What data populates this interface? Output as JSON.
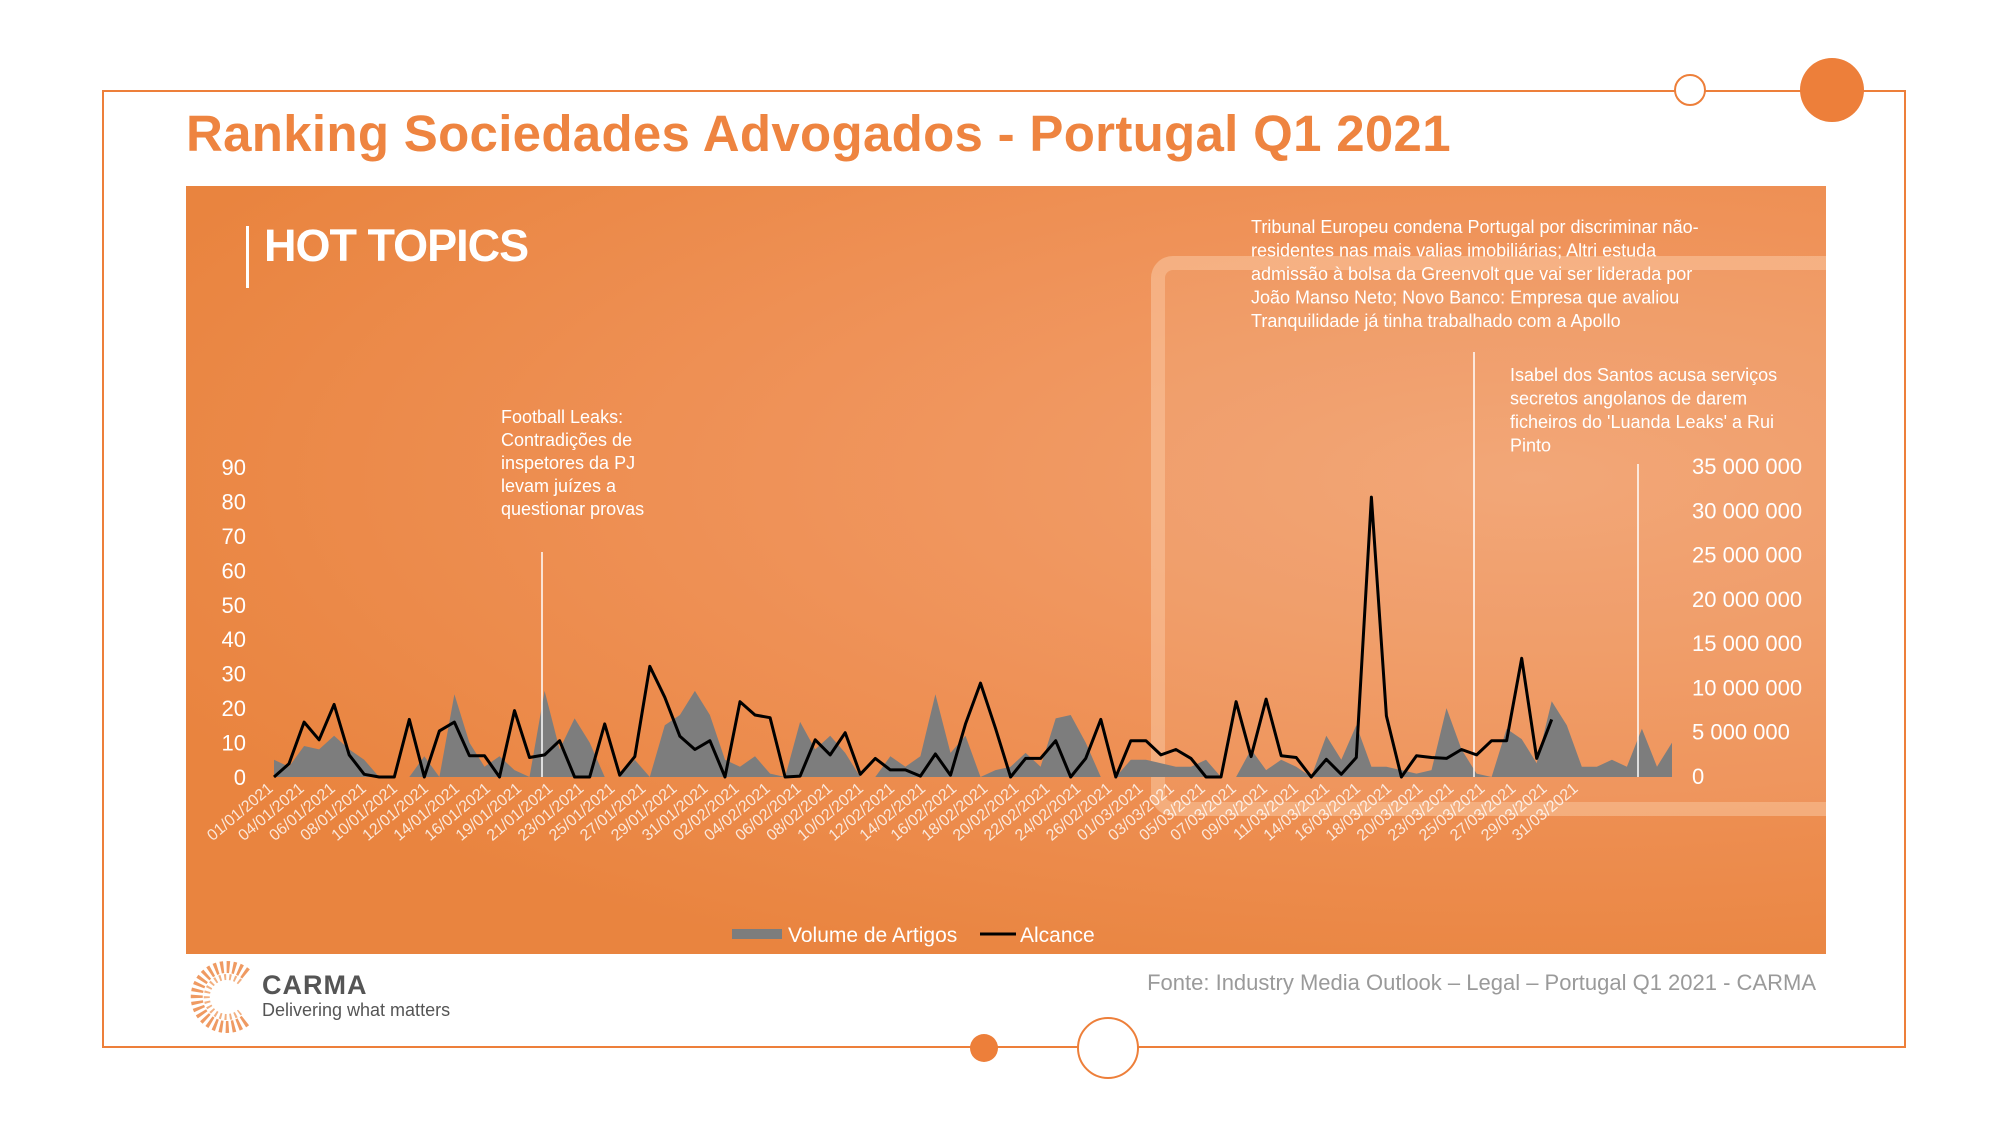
{
  "page": {
    "title": "Ranking Sociedades Advogados - Portugal Q1 2021",
    "section_title": "HOT TOPICS",
    "source": "Fonte: Industry Media Outlook – Legal – Portugal Q1 2021 - CARMA",
    "logo": {
      "name": "CARMA",
      "tagline": "Delivering what matters"
    }
  },
  "colors": {
    "accent": "#ed7f3a",
    "area": "#7d7d7d",
    "line": "#000000",
    "panel": "#e9843f",
    "text_light": "#ffffff"
  },
  "chart_data": {
    "type": "area",
    "x_tick_labels": [
      "01/01/2021",
      "04/01/2021",
      "06/01/2021",
      "08/01/2021",
      "10/01/2021",
      "12/01/2021",
      "14/01/2021",
      "16/01/2021",
      "19/01/2021",
      "21/01/2021",
      "23/01/2021",
      "25/01/2021",
      "27/01/2021",
      "29/01/2021",
      "31/01/2021",
      "02/02/2021",
      "04/02/2021",
      "06/02/2021",
      "08/02/2021",
      "10/02/2021",
      "12/02/2021",
      "14/02/2021",
      "16/02/2021",
      "18/02/2021",
      "20/02/2021",
      "22/02/2021",
      "24/02/2021",
      "26/02/2021",
      "01/03/2021",
      "03/03/2021",
      "05/03/2021",
      "07/03/2021",
      "09/03/2021",
      "11/03/2021",
      "14/03/2021",
      "16/03/2021",
      "18/03/2021",
      "20/03/2021",
      "23/03/2021",
      "25/03/2021",
      "27/03/2021",
      "29/03/2021",
      "31/03/2021"
    ],
    "y_left": {
      "ticks": [
        "0",
        "10",
        "20",
        "30",
        "40",
        "50",
        "60",
        "70",
        "80",
        "90"
      ],
      "range": [
        0,
        90
      ]
    },
    "y_right": {
      "ticks": [
        "0",
        "5 000 000",
        "10 000 000",
        "15 000 000",
        "20 000 000",
        "25 000 000",
        "30 000 000",
        "35 000 000"
      ],
      "range": [
        0,
        35000000
      ]
    },
    "series": [
      {
        "name": "Volume de Artigos",
        "type": "area",
        "axis": "left",
        "values": [
          5,
          3,
          9,
          8,
          12,
          8,
          5,
          0,
          0,
          0,
          6,
          0,
          24,
          10,
          3,
          6,
          2,
          0,
          25,
          8,
          17,
          10,
          0,
          0,
          5,
          0,
          15,
          18,
          25,
          18,
          5,
          3,
          6,
          1,
          0,
          16,
          8,
          12,
          7,
          0,
          0,
          6,
          3,
          6,
          24,
          7,
          12,
          0,
          2,
          3,
          7,
          3,
          17,
          18,
          10,
          0,
          0,
          5,
          5,
          4,
          3,
          3,
          5,
          0,
          0,
          8,
          2,
          5,
          3,
          0,
          12,
          5,
          15,
          3,
          3,
          2,
          1,
          2,
          20,
          8,
          1,
          0,
          14,
          11,
          4,
          22,
          15,
          3,
          3,
          5,
          3,
          14,
          3,
          10
        ]
      },
      {
        "name": "Alcance",
        "type": "line",
        "axis": "right",
        "values": [
          0,
          1500000,
          6200000,
          4200000,
          8200000,
          2500000,
          300000,
          0,
          0,
          6500000,
          0,
          5200000,
          6200000,
          2400000,
          2400000,
          0,
          7500000,
          2200000,
          2500000,
          4100000,
          0,
          0,
          6000000,
          200000,
          2300000,
          12500000,
          9000000,
          4600000,
          3100000,
          4100000,
          0,
          8500000,
          7000000,
          6700000,
          0,
          100000,
          4200000,
          2500000,
          5000000,
          300000,
          2100000,
          800000,
          800000,
          100000,
          2600000,
          200000,
          6000000,
          10600000,
          5500000,
          0,
          2100000,
          2100000,
          4100000,
          0,
          2100000,
          6500000,
          0,
          4100000,
          4100000,
          2500000,
          3100000,
          2100000,
          0,
          0,
          8500000,
          2300000,
          8800000,
          2400000,
          2200000,
          0,
          2000000,
          300000,
          2200000,
          31600000,
          6900000,
          0,
          2400000,
          2200000,
          2100000,
          3100000,
          2500000,
          4100000,
          4100000,
          13400000,
          2100000,
          6500000
        ]
      }
    ],
    "annotations": [
      {
        "date": "20/01/2021",
        "text": [
          "Football Leaks:",
          "Contradições de",
          "inspetores da PJ",
          "levam juízes a",
          "questionar provas"
        ]
      },
      {
        "date": "18/03/2021",
        "text": [
          "Tribunal Europeu condena Portugal por discriminar não-",
          "residentes nas mais valias imobiliárias; Altri estuda",
          "admissão à bolsa da Greenvolt que vai ser liderada por",
          "João Manso Neto; Novo Banco: Empresa que avaliou",
          "Tranquilidade já tinha trabalhado com a Apollo"
        ]
      },
      {
        "date": "30/03/2021",
        "text": [
          "Isabel dos Santos acusa serviços",
          "secretos angolanos de darem",
          "ficheiros do 'Luanda Leaks' a Rui",
          "Pinto"
        ]
      }
    ],
    "legend": {
      "position": "bottom"
    }
  }
}
